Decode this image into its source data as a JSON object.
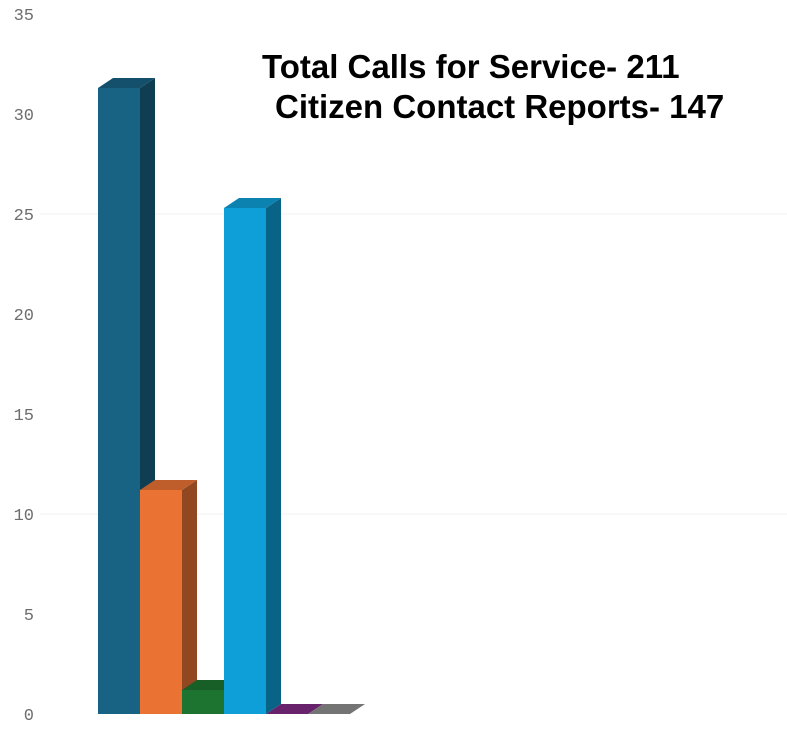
{
  "chart_data": {
    "type": "bar",
    "categories": [
      "",
      "",
      "",
      "",
      "",
      ""
    ],
    "values": [
      31.3,
      11.2,
      1.2,
      25.3,
      0,
      0
    ],
    "colors": [
      "#186283",
      "#ea7334",
      "#1d7330",
      "#0f9fd8",
      "#7d2a83",
      "#8e8e8e"
    ],
    "ylim": [
      0,
      35
    ],
    "yticks": [
      0,
      5,
      10,
      15,
      20,
      25,
      30,
      35
    ],
    "grid": true,
    "annotation_lines": [
      "Total Calls for Service- 211",
      "Citizen Contact Reports- 147"
    ]
  }
}
